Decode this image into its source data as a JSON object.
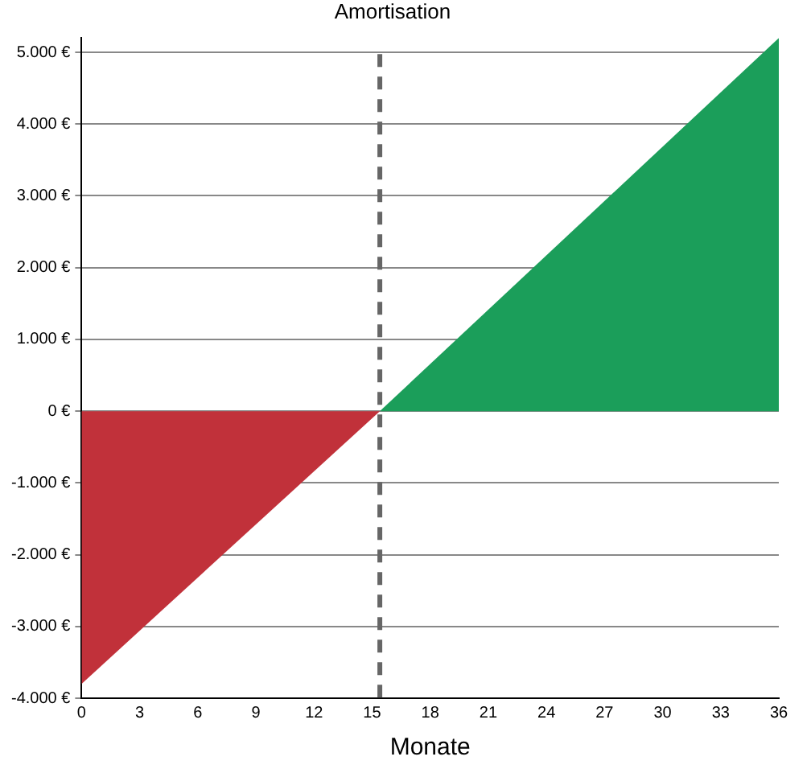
{
  "chart_data": {
    "type": "area",
    "title": "Amortisation",
    "xlabel": "Monate",
    "series": [
      {
        "color": "#c1313a",
        "x": [
          0,
          15.4
        ],
        "values": [
          -3800,
          0
        ]
      },
      {
        "color": "#1b9e5a",
        "x": [
          15.4,
          36
        ],
        "values": [
          0,
          5200
        ]
      }
    ],
    "xlim": [
      0,
      36
    ],
    "xticks": [
      0,
      3,
      6,
      9,
      12,
      15,
      18,
      21,
      24,
      27,
      30,
      33,
      36
    ],
    "ylim": [
      -4000,
      5200
    ],
    "yticks": [
      {
        "value": -4000,
        "label": "-4.000 €"
      },
      {
        "value": -3000,
        "label": "-3.000 €"
      },
      {
        "value": -2000,
        "label": "-2.000 €"
      },
      {
        "value": -1000,
        "label": "-1.000 €"
      },
      {
        "value": 0,
        "label": "0 €"
      },
      {
        "value": 1000,
        "label": "1.000 €"
      },
      {
        "value": 2000,
        "label": "2.000 €"
      },
      {
        "value": 3000,
        "label": "3.000 €"
      },
      {
        "value": 4000,
        "label": "4.000 €"
      },
      {
        "value": 5000,
        "label": "5.000 €"
      }
    ],
    "grid": "y",
    "legend": false,
    "ref_lines": [
      {
        "axis": "x",
        "value": 15.4,
        "color": "#666666",
        "line_style": "dashed"
      }
    ]
  }
}
